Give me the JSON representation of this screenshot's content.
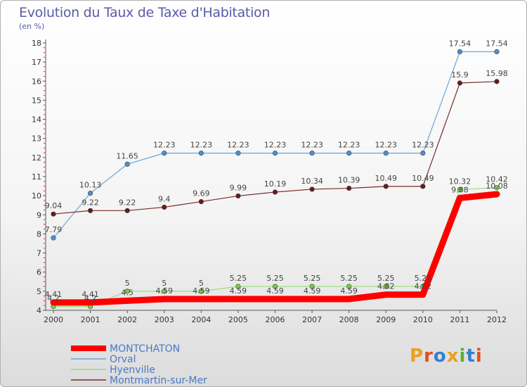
{
  "header": {
    "title": "Evolution du Taux de Taxe d'Habitation",
    "unit": "(en %)"
  },
  "logo": {
    "text": "Proxiti",
    "colors": [
      "#e8a020",
      "#e05020",
      "#3080d0",
      "#e8a020",
      "#60b030",
      "#3080d0",
      "#e05020"
    ]
  },
  "chart_data": {
    "type": "line",
    "x": [
      "2000",
      "2001",
      "2002",
      "2003",
      "2004",
      "2005",
      "2006",
      "2007",
      "2008",
      "2009",
      "2010",
      "2011",
      "2012"
    ],
    "ylim": [
      4,
      18
    ],
    "yticks": [
      4,
      5,
      6,
      7,
      8,
      9,
      10,
      11,
      12,
      13,
      14,
      15,
      16,
      17,
      18
    ],
    "grid": false,
    "legend_position": "bottom-left",
    "series": [
      {
        "name": "MONTCHATON",
        "color": "#ff0000",
        "width": 9,
        "marker": false,
        "values": [
          4.41,
          4.41,
          4.5,
          4.59,
          4.59,
          4.59,
          4.59,
          4.59,
          4.59,
          4.82,
          4.82,
          9.88,
          10.08
        ],
        "labels": [
          "4.41",
          "4.41",
          "4.5",
          "4.59",
          "4.59",
          "4.59",
          "4.59",
          "4.59",
          "4.59",
          "4.82",
          "4.82",
          "9.88",
          "10.08"
        ]
      },
      {
        "name": "Orval",
        "color": "#6da6d6",
        "width": 1.2,
        "marker": true,
        "marker_color": "#4a90d0",
        "values": [
          7.79,
          10.13,
          11.65,
          12.23,
          12.23,
          12.23,
          12.23,
          12.23,
          12.23,
          12.23,
          12.23,
          17.54,
          17.54
        ],
        "labels": [
          "7.79",
          "10.13",
          "11.65",
          "12.23",
          "12.23",
          "12.23",
          "12.23",
          "12.23",
          "12.23",
          "12.23",
          "12.23",
          "17.54",
          "17.54"
        ]
      },
      {
        "name": "Hyenville",
        "color": "#99dd77",
        "width": 1.2,
        "marker": true,
        "marker_color": "#77cc44",
        "values": [
          4.2,
          4.2,
          5,
          5,
          5,
          5.25,
          5.25,
          5.25,
          5.25,
          5.25,
          5.25,
          10.32,
          10.42
        ],
        "labels": [
          "4.2",
          "4.2",
          "5",
          "5",
          "5",
          "5.25",
          "5.25",
          "5.25",
          "5.25",
          "5.25",
          "5.25",
          "10.32",
          "10.42"
        ]
      },
      {
        "name": "Montmartin-sur-Mer",
        "color": "#7a2a2a",
        "width": 1.2,
        "marker": true,
        "marker_color": "#6a1a1a",
        "values": [
          9.04,
          9.22,
          9.22,
          9.4,
          9.69,
          9.99,
          10.19,
          10.34,
          10.39,
          10.49,
          10.49,
          15.9,
          15.98
        ],
        "labels": [
          "9.04",
          "9.22",
          "9.22",
          "9.4",
          "9.69",
          "9.99",
          "10.19",
          "10.34",
          "10.39",
          "10.49",
          "10.49",
          "15.9",
          "15.98"
        ]
      }
    ]
  }
}
